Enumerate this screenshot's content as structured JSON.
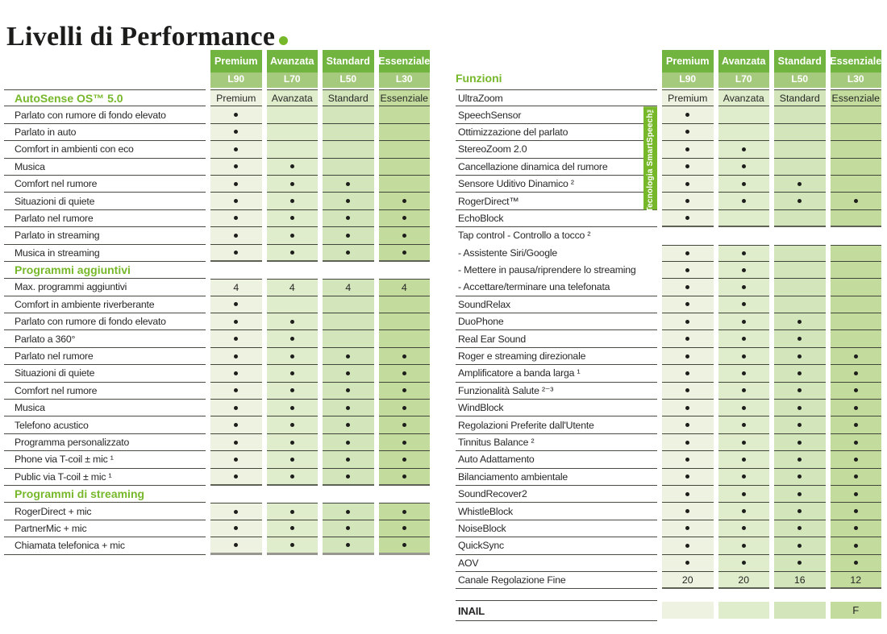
{
  "title": {
    "text": "Livelli di Performance"
  },
  "colors": {
    "brand_green": "#76b82a",
    "header_top": "#72b440",
    "header_bottom": "#a6ca7d",
    "col_fills": [
      "#eef3e1",
      "#e0edcd",
      "#d3e5bb",
      "#c3dc9e"
    ]
  },
  "tiers": [
    {
      "name": "Premium",
      "model": "L90"
    },
    {
      "name": "Avanzata",
      "model": "L70"
    },
    {
      "name": "Standard",
      "model": "L50"
    },
    {
      "name": "Essenziale",
      "model": "L30"
    }
  ],
  "left_table": {
    "rows": [
      {
        "t": "section",
        "label": "AutoSense OS™ 5.0",
        "c": [
          "Premium",
          "Avanzata",
          "Standard",
          "Essenziale"
        ]
      },
      {
        "t": "f",
        "label": "Parlato con rumore di fondo elevato",
        "c": [
          "d",
          "",
          "",
          ""
        ]
      },
      {
        "t": "f",
        "label": "Parlato in auto",
        "c": [
          "d",
          "",
          "",
          ""
        ]
      },
      {
        "t": "f",
        "label": "Comfort in ambienti con eco",
        "c": [
          "d",
          "",
          "",
          ""
        ]
      },
      {
        "t": "f",
        "label": "Musica",
        "c": [
          "d",
          "d",
          "",
          ""
        ]
      },
      {
        "t": "f",
        "label": "Comfort nel rumore",
        "c": [
          "d",
          "d",
          "d",
          ""
        ]
      },
      {
        "t": "f",
        "label": "Situazioni di quiete",
        "c": [
          "d",
          "d",
          "d",
          "d"
        ]
      },
      {
        "t": "f",
        "label": "Parlato nel rumore",
        "c": [
          "d",
          "d",
          "d",
          "d"
        ]
      },
      {
        "t": "f",
        "label": "Parlato in streaming",
        "c": [
          "d",
          "d",
          "d",
          "d"
        ]
      },
      {
        "t": "f",
        "label": "Musica in streaming",
        "c": [
          "d",
          "d",
          "d",
          "d"
        ]
      },
      {
        "t": "section",
        "label": "Programmi aggiuntivi",
        "c": null
      },
      {
        "t": "f",
        "label": "Max. programmi aggiuntivi",
        "c": [
          "4",
          "4",
          "4",
          "4"
        ]
      },
      {
        "t": "f",
        "label": "Comfort in ambiente riverberante",
        "c": [
          "d",
          "",
          "",
          ""
        ]
      },
      {
        "t": "f",
        "label": "Parlato con rumore di fondo elevato",
        "c": [
          "d",
          "d",
          "",
          ""
        ]
      },
      {
        "t": "f",
        "label": "Parlato a 360°",
        "c": [
          "d",
          "d",
          "",
          ""
        ]
      },
      {
        "t": "f",
        "label": "Parlato nel rumore",
        "c": [
          "d",
          "d",
          "d",
          "d"
        ]
      },
      {
        "t": "f",
        "label": "Situazioni di quiete",
        "c": [
          "d",
          "d",
          "d",
          "d"
        ]
      },
      {
        "t": "f",
        "label": "Comfort nel rumore",
        "c": [
          "d",
          "d",
          "d",
          "d"
        ]
      },
      {
        "t": "f",
        "label": "Musica",
        "c": [
          "d",
          "d",
          "d",
          "d"
        ]
      },
      {
        "t": "f",
        "label": "Telefono acustico",
        "c": [
          "d",
          "d",
          "d",
          "d"
        ]
      },
      {
        "t": "f",
        "label": "Programma personalizzato",
        "c": [
          "d",
          "d",
          "d",
          "d"
        ]
      },
      {
        "t": "f",
        "label": "Phone via T-coil ± mic ¹",
        "c": [
          "d",
          "d",
          "d",
          "d"
        ]
      },
      {
        "t": "f",
        "label": "Public via T-coil ± mic ¹",
        "c": [
          "d",
          "d",
          "d",
          "d"
        ]
      },
      {
        "t": "section",
        "label": "Programmi di streaming",
        "c": null
      },
      {
        "t": "f",
        "label": "RogerDirect + mic",
        "c": [
          "d",
          "d",
          "d",
          "d"
        ]
      },
      {
        "t": "f",
        "label": "PartnerMic + mic",
        "c": [
          "d",
          "d",
          "d",
          "d"
        ]
      },
      {
        "t": "f",
        "label": "Chiamata telefonica + mic",
        "c": [
          "d",
          "d",
          "d",
          "d"
        ]
      }
    ]
  },
  "right_table": {
    "heading": "Funzioni",
    "smartspeech": {
      "label": "Tecnologia SmartSpeech™",
      "start_row": 1,
      "row_span": 6
    },
    "rows": [
      {
        "t": "f",
        "label": "UltraZoom",
        "c": [
          "Premium",
          "Avanzata",
          "Standard",
          "Essenziale"
        ]
      },
      {
        "t": "f",
        "label": "SpeechSensor",
        "c": [
          "d",
          "",
          "",
          ""
        ]
      },
      {
        "t": "f",
        "label": "Ottimizzazione del parlato",
        "c": [
          "d",
          "",
          "",
          ""
        ]
      },
      {
        "t": "f",
        "label": "StereoZoom 2.0",
        "c": [
          "d",
          "d",
          "",
          ""
        ]
      },
      {
        "t": "f",
        "label": "Cancellazione dinamica del rumore",
        "c": [
          "d",
          "d",
          "",
          ""
        ]
      },
      {
        "t": "f",
        "label": "Sensore Uditivo Dinamico ²",
        "c": [
          "d",
          "d",
          "d",
          ""
        ]
      },
      {
        "t": "f",
        "label": "RogerDirect™",
        "c": [
          "d",
          "d",
          "d",
          "d"
        ]
      },
      {
        "t": "f",
        "label": "EchoBlock",
        "c": [
          "d",
          "",
          "",
          ""
        ]
      },
      {
        "t": "f",
        "label": "Tap control - Controllo a tocco ²",
        "c": null,
        "nl": true
      },
      {
        "t": "sub",
        "label": "- Assistente Siri/Google",
        "c": [
          "d",
          "d",
          "",
          ""
        ],
        "nl": true
      },
      {
        "t": "sub",
        "label": "- Mettere in pausa/riprendere lo streaming",
        "c": [
          "d",
          "d",
          "",
          ""
        ],
        "nl": true
      },
      {
        "t": "sub",
        "label": "- Accettare/terminare una telefonata",
        "c": [
          "d",
          "d",
          "",
          ""
        ]
      },
      {
        "t": "f",
        "label": "SoundRelax",
        "c": [
          "d",
          "d",
          "",
          ""
        ]
      },
      {
        "t": "f",
        "label": "DuoPhone",
        "c": [
          "d",
          "d",
          "d",
          ""
        ]
      },
      {
        "t": "f",
        "label": "Real Ear Sound",
        "c": [
          "d",
          "d",
          "d",
          ""
        ]
      },
      {
        "t": "f",
        "label": "Roger e streaming direzionale",
        "c": [
          "d",
          "d",
          "d",
          "d"
        ]
      },
      {
        "t": "f",
        "label": "Amplificatore a banda larga ¹",
        "c": [
          "d",
          "d",
          "d",
          "d"
        ]
      },
      {
        "t": "f",
        "label": "Funzionalità Salute ²⁻³",
        "c": [
          "d",
          "d",
          "d",
          "d"
        ]
      },
      {
        "t": "f",
        "label": "WindBlock",
        "c": [
          "d",
          "d",
          "d",
          "d"
        ]
      },
      {
        "t": "f",
        "label": "Regolazioni Preferite dall'Utente",
        "c": [
          "d",
          "d",
          "d",
          "d"
        ]
      },
      {
        "t": "f",
        "label": "Tinnitus Balance ²",
        "c": [
          "d",
          "d",
          "d",
          "d"
        ]
      },
      {
        "t": "f",
        "label": "Auto Adattamento",
        "c": [
          "d",
          "d",
          "d",
          "d"
        ]
      },
      {
        "t": "f",
        "label": "Bilanciamento ambientale",
        "c": [
          "d",
          "d",
          "d",
          "d"
        ]
      },
      {
        "t": "f",
        "label": "SoundRecover2",
        "c": [
          "d",
          "d",
          "d",
          "d"
        ]
      },
      {
        "t": "f",
        "label": "WhistleBlock",
        "c": [
          "d",
          "d",
          "d",
          "d"
        ]
      },
      {
        "t": "f",
        "label": "NoiseBlock",
        "c": [
          "d",
          "d",
          "d",
          "d"
        ]
      },
      {
        "t": "f",
        "label": "QuickSync",
        "c": [
          "d",
          "d",
          "d",
          "d"
        ]
      },
      {
        "t": "f",
        "label": "AOV",
        "c": [
          "d",
          "d",
          "d",
          "d"
        ]
      },
      {
        "t": "f",
        "label": "Canale Regolazione Fine",
        "c": [
          "20",
          "20",
          "16",
          "12"
        ]
      }
    ],
    "inail": {
      "label": "INAIL",
      "cells": [
        "",
        "",
        "",
        "F"
      ]
    }
  }
}
